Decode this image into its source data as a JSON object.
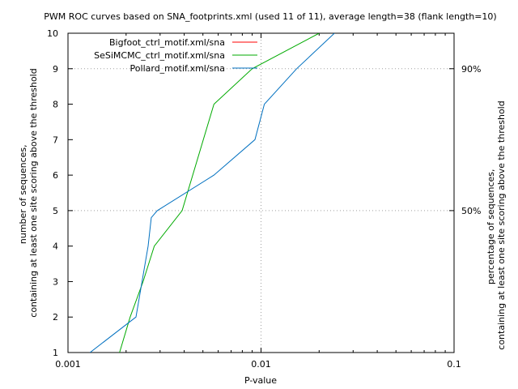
{
  "chart_data": {
    "type": "line",
    "title": "PWM ROC curves based on SNA_footprints.xml (used 11 of 11), average length=38 (flank length=10)",
    "xlabel": "P-value",
    "ylabel_left_line1": "number of sequences,",
    "ylabel_left_line2": "containing at least one site scoring above the threshold",
    "ylabel_right_line1": "percentage of sequences,",
    "ylabel_right_line2": "containing at least one site scoring above the threshold",
    "x_scale": "log",
    "xlim": [
      0.001,
      0.1
    ],
    "ylim": [
      1,
      10
    ],
    "x_ticks": [
      {
        "value": 0.001,
        "label": "0.001"
      },
      {
        "value": 0.01,
        "label": "0.01"
      },
      {
        "value": 0.1,
        "label": "0.1"
      }
    ],
    "y_ticks": [
      {
        "value": 1,
        "label": "1"
      },
      {
        "value": 2,
        "label": "2"
      },
      {
        "value": 3,
        "label": "3"
      },
      {
        "value": 4,
        "label": "4"
      },
      {
        "value": 5,
        "label": "5"
      },
      {
        "value": 6,
        "label": "6"
      },
      {
        "value": 7,
        "label": "7"
      },
      {
        "value": 8,
        "label": "8"
      },
      {
        "value": 9,
        "label": "9"
      },
      {
        "value": 10,
        "label": "10"
      }
    ],
    "y2_ticks": [
      {
        "value": 5,
        "label": "50%"
      },
      {
        "value": 9,
        "label": "90%"
      }
    ],
    "grid": "dotted at x=0.01, y=5 and y=9",
    "legend_position": "top-left inside plot",
    "series": [
      {
        "name": "Bigfoot_ctrl_motif.xml/sna",
        "color": "#ff0000",
        "x": [],
        "y": []
      },
      {
        "name": "SeSiMCMC_ctrl_motif.xml/sna",
        "color": "#00aa00",
        "x": [
          0.00185,
          0.0021,
          0.00245,
          0.0028,
          0.0039,
          0.0057,
          0.009,
          0.02
        ],
        "y": [
          1,
          2,
          3,
          4,
          5,
          8,
          9,
          10
        ]
      },
      {
        "name": "Pollard_motif.xml/sna",
        "color": "#0070c0",
        "x": [
          0.0013,
          0.00225,
          0.0026,
          0.0027,
          0.0029,
          0.0057,
          0.0093,
          0.0104,
          0.0153,
          0.024
        ],
        "y": [
          1,
          2,
          4,
          4.8,
          5,
          6,
          7,
          8,
          9,
          10
        ]
      }
    ]
  }
}
